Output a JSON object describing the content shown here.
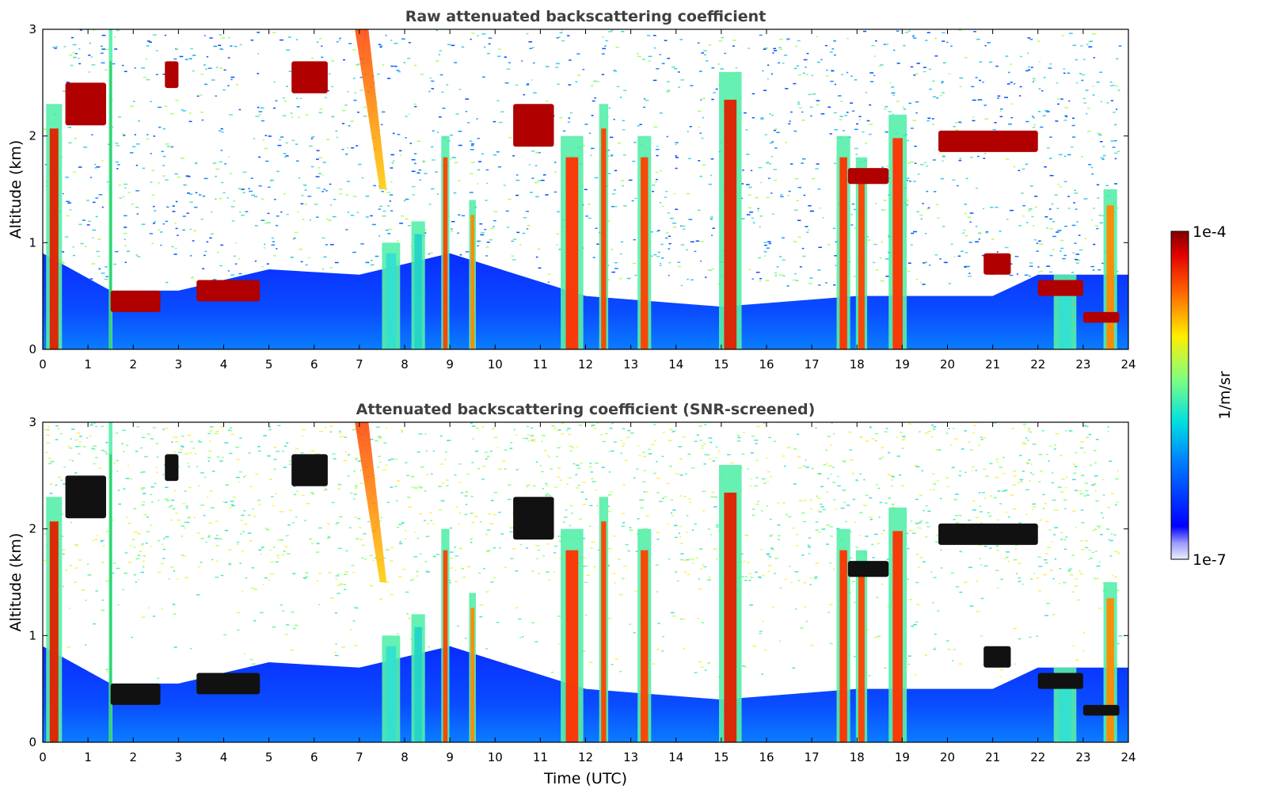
{
  "chart_data": [
    {
      "type": "heatmap",
      "title": "Raw attenuated backscattering coefficient",
      "xlabel": "",
      "ylabel": "Altitude (km)",
      "xlim": [
        0,
        24
      ],
      "ylim": [
        0,
        3
      ],
      "x_ticks": [
        "0",
        "1",
        "2",
        "3",
        "4",
        "5",
        "6",
        "7",
        "8",
        "9",
        "10",
        "11",
        "12",
        "13",
        "14",
        "15",
        "16",
        "17",
        "18",
        "19",
        "20",
        "21",
        "22",
        "23",
        "24"
      ],
      "y_ticks": [
        "0",
        "1",
        "2",
        "3"
      ],
      "grid": false,
      "noise_top_color": "#1a8cff",
      "boundary_layer_top_km": [
        [
          0,
          0.9
        ],
        [
          1.5,
          0.55
        ],
        [
          3,
          0.55
        ],
        [
          5,
          0.75
        ],
        [
          7,
          0.7
        ],
        [
          9,
          0.9
        ],
        [
          12,
          0.5
        ],
        [
          15,
          0.4
        ],
        [
          18,
          0.5
        ],
        [
          21,
          0.5
        ],
        [
          22,
          0.7
        ],
        [
          24,
          0.7
        ]
      ],
      "vertical_features": [
        {
          "x": 0.25,
          "width": 0.35,
          "top_km": 2.3,
          "core": "#e02000"
        },
        {
          "x": 1.5,
          "width": 0.08,
          "top_km": 3.0,
          "core": "#33cc66"
        },
        {
          "x": 7.7,
          "width": 0.4,
          "top_km": 1.0,
          "core": "#33e0d0"
        },
        {
          "x": 8.3,
          "width": 0.3,
          "top_km": 1.2,
          "core": "#22d4c8"
        },
        {
          "x": 8.9,
          "width": 0.18,
          "top_km": 2.0,
          "core": "#ff4000"
        },
        {
          "x": 9.5,
          "width": 0.15,
          "top_km": 1.4,
          "core": "#ff8800"
        },
        {
          "x": 11.7,
          "width": 0.5,
          "top_km": 2.0,
          "core": "#ff3000"
        },
        {
          "x": 12.4,
          "width": 0.2,
          "top_km": 2.3,
          "core": "#ff4000"
        },
        {
          "x": 13.3,
          "width": 0.3,
          "top_km": 2.0,
          "core": "#ff4000"
        },
        {
          "x": 15.2,
          "width": 0.5,
          "top_km": 2.6,
          "core": "#e02000"
        },
        {
          "x": 17.7,
          "width": 0.3,
          "top_km": 2.0,
          "core": "#ff3000"
        },
        {
          "x": 18.1,
          "width": 0.25,
          "top_km": 1.8,
          "core": "#ff4000"
        },
        {
          "x": 18.9,
          "width": 0.4,
          "top_km": 2.2,
          "core": "#ff3000"
        },
        {
          "x": 22.6,
          "width": 0.5,
          "top_km": 0.7,
          "core": "#33e0d0"
        },
        {
          "x": 23.6,
          "width": 0.3,
          "top_km": 1.5,
          "core": "#ff8800"
        }
      ],
      "cloud_layers": [
        {
          "x0": 0.5,
          "x1": 1.4,
          "y0": 2.1,
          "y1": 2.5
        },
        {
          "x0": 2.7,
          "x1": 3.0,
          "y0": 2.45,
          "y1": 2.7
        },
        {
          "x0": 1.5,
          "x1": 2.6,
          "y0": 0.35,
          "y1": 0.55
        },
        {
          "x0": 3.4,
          "x1": 4.8,
          "y0": 0.45,
          "y1": 0.65
        },
        {
          "x0": 5.5,
          "x1": 6.3,
          "y0": 2.4,
          "y1": 2.7
        },
        {
          "x0": 10.4,
          "x1": 11.3,
          "y0": 1.9,
          "y1": 2.3
        },
        {
          "x0": 17.8,
          "x1": 18.7,
          "y0": 1.55,
          "y1": 1.7
        },
        {
          "x0": 19.8,
          "x1": 22.0,
          "y0": 1.85,
          "y1": 2.05
        },
        {
          "x0": 20.8,
          "x1": 21.4,
          "y0": 0.7,
          "y1": 0.9
        },
        {
          "x0": 22.0,
          "x1": 23.0,
          "y0": 0.5,
          "y1": 0.65
        },
        {
          "x0": 23.0,
          "x1": 23.8,
          "y0": 0.25,
          "y1": 0.35
        }
      ],
      "plume": {
        "x_top0": 6.9,
        "x_top1": 7.2,
        "x_bottom": 7.6,
        "y_bottom": 1.5
      }
    },
    {
      "type": "heatmap",
      "title": "Attenuated backscattering coefficient (SNR-screened)",
      "xlabel": "Time (UTC)",
      "ylabel": "Altitude (km)",
      "xlim": [
        0,
        24
      ],
      "ylim": [
        0,
        3
      ],
      "x_ticks": [
        "0",
        "1",
        "2",
        "3",
        "4",
        "5",
        "6",
        "7",
        "8",
        "9",
        "10",
        "11",
        "12",
        "13",
        "14",
        "15",
        "16",
        "17",
        "18",
        "19",
        "20",
        "21",
        "22",
        "23",
        "24"
      ],
      "y_ticks": [
        "0",
        "1",
        "2",
        "3"
      ],
      "grid": false,
      "screened_color": "#ffffff",
      "noise_top_color": "#5cf0b0",
      "layer_color": "#111111"
    }
  ],
  "colorbar": {
    "label": "1/m/sr",
    "max_label": "1e-4",
    "min_label": "1e-7",
    "colormap": "jet",
    "range": [
      1e-07,
      0.0001
    ]
  }
}
